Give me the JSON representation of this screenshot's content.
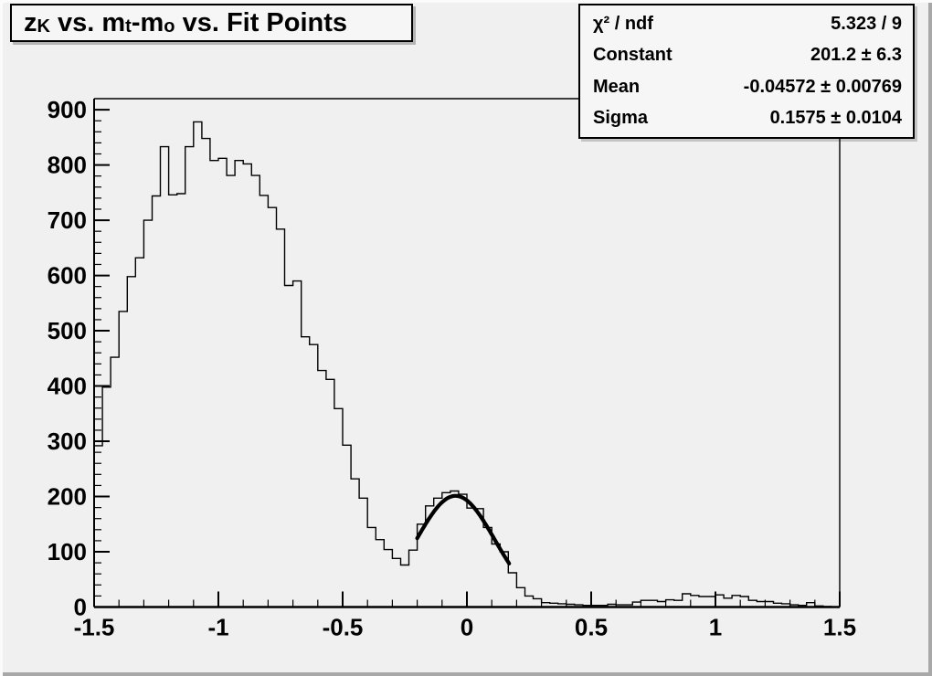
{
  "title": {
    "parts": [
      "z",
      "K",
      " vs. m",
      "t",
      "-m",
      "o",
      " vs. Fit Points"
    ],
    "full_text": "zK vs. mt-mo vs. Fit Points"
  },
  "stats": {
    "rows": [
      {
        "label": "χ² / ndf",
        "value": "5.323 / 9"
      },
      {
        "label": "Constant",
        "value": "201.2 ± 6.3"
      },
      {
        "label": "Mean",
        "value": "-0.04572 ± 0.00769"
      },
      {
        "label": "Sigma",
        "value": "0.1575 ± 0.0104"
      }
    ]
  },
  "colors": {
    "background": "#f0f0f0",
    "box_fill": "#f6f6f6",
    "line": "#000000",
    "text": "#000000"
  },
  "chart_data": {
    "type": "histogram",
    "title": "zK vs. mt-mo vs. Fit Points",
    "xlabel": "",
    "ylabel": "",
    "x_range": [
      -1.5,
      1.5
    ],
    "y_range": [
      0,
      920
    ],
    "n_bins": 90,
    "bin_width": 0.0333,
    "values": [
      292,
      398,
      452,
      535,
      598,
      632,
      700,
      744,
      833,
      746,
      748,
      833,
      878,
      848,
      808,
      812,
      781,
      808,
      802,
      781,
      745,
      723,
      684,
      582,
      590,
      489,
      475,
      428,
      412,
      359,
      293,
      232,
      197,
      144,
      122,
      104,
      88,
      76,
      103,
      150,
      183,
      197,
      207,
      210,
      204,
      179,
      178,
      144,
      114,
      100,
      62,
      35,
      20,
      15,
      8,
      7,
      6,
      5,
      4,
      3,
      3,
      3,
      5,
      4,
      4,
      9,
      12,
      12,
      10,
      13,
      12,
      24,
      21,
      19,
      19,
      22,
      16,
      21,
      19,
      12,
      10,
      10,
      7,
      6,
      4,
      3,
      8,
      2,
      1,
      0
    ],
    "x_ticks": {
      "major_values": [
        -1.5,
        -1,
        -0.5,
        0,
        0.5,
        1,
        1.5
      ],
      "major_labels": [
        "-1.5",
        "-1",
        "-0.5",
        "0",
        "0.5",
        "1",
        "1.5"
      ],
      "minor_step": 0.1
    },
    "y_ticks": {
      "major_values": [
        0,
        100,
        200,
        300,
        400,
        500,
        600,
        700,
        800,
        900
      ],
      "major_labels": [
        "0",
        "100",
        "200",
        "300",
        "400",
        "500",
        "600",
        "700",
        "800",
        "900"
      ],
      "minor_step": 20
    },
    "grid": false,
    "fit": {
      "type": "gaussian",
      "constant": 201.2,
      "mean": -0.04572,
      "sigma": 0.1575,
      "draw_range": [
        -0.2,
        0.17
      ]
    }
  }
}
